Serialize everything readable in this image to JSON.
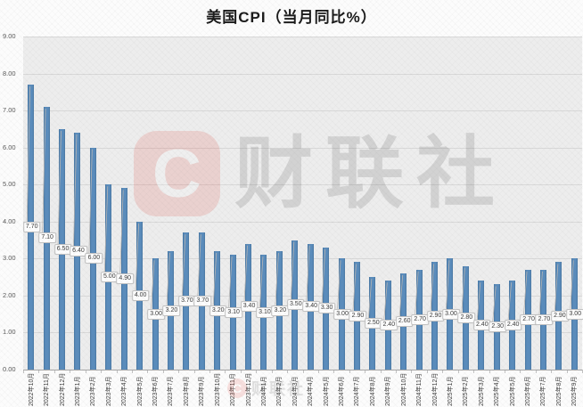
{
  "colors": {
    "bar": "#5a8cbc",
    "bar_edge": "#4d7ca8",
    "plot_background": "#ededed",
    "gridline": "#d8d8d8",
    "axis_line": "#a6a6a6",
    "title_text": "#1a1a1a",
    "axis_label_text": "#3d3d3d",
    "data_label_text": "#3c3c3c",
    "data_label_border": "#c3c3c3",
    "watermark_red": "#e04438"
  },
  "watermark": {
    "logo_letter": "C",
    "brand": "财联社",
    "bottom_logo_letter": "C",
    "bottom_brand": "财联社"
  },
  "chart_data": {
    "type": "bar",
    "title": "美国CPI（当月同比%）",
    "xlabel": "",
    "ylabel": "",
    "ylim": [
      0,
      9
    ],
    "ytick_step": 1,
    "grid": true,
    "legend": "none",
    "data_labels": true,
    "ytick_labels": [
      "9.00",
      "8.00",
      "7.00",
      "6.00",
      "5.00",
      "4.00",
      "3.00",
      "2.00",
      "1.00",
      "0.00"
    ],
    "categories": [
      "2022年10月",
      "2022年11月",
      "2022年12月",
      "2023年1月",
      "2023年2月",
      "2023年3月",
      "2023年4月",
      "2023年5月",
      "2023年6月",
      "2023年7月",
      "2023年8月",
      "2023年9月",
      "2023年10月",
      "2023年11月",
      "2023年12月",
      "2024年1月",
      "2024年2月",
      "2024年3月",
      "2024年4月",
      "2024年5月",
      "2024年6月",
      "2024年7月",
      "2024年8月",
      "2024年9月",
      "2024年10月",
      "2024年11月",
      "2024年12月",
      "2025年1月",
      "2025年2月",
      "2025年3月",
      "2025年4月",
      "2025年5月",
      "2025年6月",
      "2025年7月",
      "2025年8月",
      "2025年9月"
    ],
    "values": [
      7.7,
      7.1,
      6.5,
      6.4,
      6.0,
      5.0,
      4.9,
      4.0,
      3.0,
      3.2,
      3.7,
      3.7,
      3.2,
      3.1,
      3.4,
      3.1,
      3.2,
      3.5,
      3.4,
      3.3,
      3.0,
      2.9,
      2.5,
      2.4,
      2.6,
      2.7,
      2.9,
      3.0,
      2.8,
      2.4,
      2.3,
      2.4,
      2.7,
      2.7,
      2.9,
      3.0
    ],
    "value_labels": [
      "7.70",
      "7.10",
      "6.50",
      "6.40",
      "6.00",
      "5.00",
      "4.90",
      "4.00",
      "3.00",
      "3.20",
      "3.70",
      "3.70",
      "3.20",
      "3.10",
      "3.40",
      "3.10",
      "3.20",
      "3.50",
      "3.40",
      "3.30",
      "3.00",
      "2.90",
      "2.50",
      "2.40",
      "2.60",
      "2.70",
      "2.90",
      "3.00",
      "2.80",
      "2.40",
      "2.30",
      "2.40",
      "2.70",
      "2.70",
      "2.90",
      "3.00"
    ]
  }
}
